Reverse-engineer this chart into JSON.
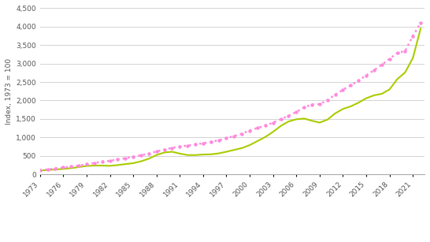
{
  "ylabel": "Index, 1973 = 100",
  "ylim": [
    0,
    4500
  ],
  "yticks": [
    0,
    500,
    1000,
    1500,
    2000,
    2500,
    3000,
    3500,
    4000,
    4500
  ],
  "background_color": "#ffffff",
  "house_prices_color": "#aacc00",
  "gdp_color": "#ff88dd",
  "years": [
    1973,
    1974,
    1975,
    1976,
    1977,
    1978,
    1979,
    1980,
    1981,
    1982,
    1983,
    1984,
    1985,
    1986,
    1987,
    1988,
    1989,
    1990,
    1991,
    1992,
    1993,
    1994,
    1995,
    1996,
    1997,
    1998,
    1999,
    2000,
    2001,
    2002,
    2003,
    2004,
    2005,
    2006,
    2007,
    2008,
    2009,
    2010,
    2011,
    2012,
    2013,
    2014,
    2015,
    2016,
    2017,
    2018,
    2019,
    2020,
    2021,
    2022
  ],
  "house_prices": [
    100,
    115,
    128,
    145,
    165,
    195,
    225,
    235,
    235,
    228,
    248,
    275,
    300,
    350,
    420,
    520,
    590,
    610,
    560,
    520,
    520,
    535,
    540,
    565,
    610,
    660,
    710,
    790,
    900,
    1010,
    1150,
    1310,
    1430,
    1490,
    1510,
    1450,
    1400,
    1480,
    1650,
    1770,
    1840,
    1940,
    2060,
    2140,
    2180,
    2300,
    2580,
    2760,
    3150,
    3950
  ],
  "nominal_gdp": [
    110,
    130,
    158,
    183,
    205,
    235,
    268,
    305,
    340,
    365,
    398,
    435,
    475,
    515,
    562,
    615,
    670,
    715,
    752,
    778,
    808,
    840,
    878,
    920,
    978,
    1035,
    1100,
    1185,
    1255,
    1320,
    1400,
    1490,
    1585,
    1690,
    1810,
    1890,
    1900,
    2010,
    2160,
    2290,
    2410,
    2540,
    2680,
    2820,
    2970,
    3130,
    3290,
    3340,
    3750,
    4100
  ],
  "xtick_years": [
    1973,
    1976,
    1979,
    1982,
    1985,
    1988,
    1991,
    1994,
    1997,
    2000,
    2003,
    2006,
    2009,
    2012,
    2015,
    2018,
    2021
  ]
}
